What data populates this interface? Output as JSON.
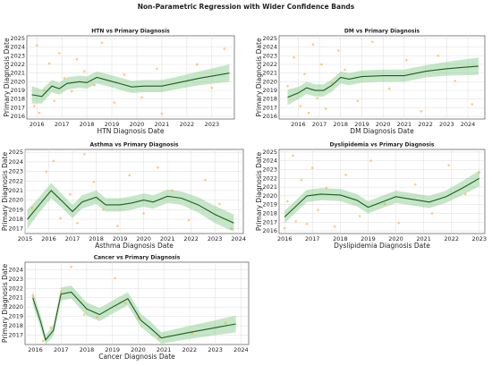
{
  "title": "Non-Parametric Regression with Wider Confidence Bands",
  "chart_data": [
    {
      "type": "scatter",
      "title": "HTN vs Primary Diagnosis",
      "xlabel": "HTN Diagnosis Date",
      "ylabel": "Primary Diagnosis Date",
      "xlim": [
        2015.6,
        2023.9
      ],
      "ylim": [
        2015.7,
        2025.3
      ],
      "xticks": [
        2016,
        2017,
        2018,
        2019,
        2020,
        2021,
        2022,
        2023
      ],
      "yticks": [
        2016,
        2017,
        2018,
        2019,
        2020,
        2021,
        2022,
        2023,
        2024,
        2025
      ],
      "grid": true,
      "points": {
        "color": "#ffa726",
        "x": [
          2015.9,
          2016.0,
          2016.1,
          2016.3,
          2016.5,
          2016.7,
          2016.9,
          2017.1,
          2017.4,
          2017.6,
          2017.9,
          2018.3,
          2018.6,
          2019.1,
          2019.5,
          2020.2,
          2020.8,
          2021.0,
          2022.4,
          2023.0,
          2023.5
        ],
        "y": [
          2017.2,
          2024.2,
          2016.4,
          2019.0,
          2022.1,
          2017.8,
          2023.3,
          2020.4,
          2018.9,
          2022.6,
          2021.2,
          2019.6,
          2024.5,
          2017.6,
          2020.8,
          2018.2,
          2021.5,
          2016.3,
          2022.0,
          2019.3,
          2023.8
        ]
      },
      "fit": {
        "color": "#1b5e20",
        "band_color": "#81c784",
        "x": [
          2015.8,
          2016.2,
          2016.6,
          2016.9,
          2017.2,
          2017.7,
          2018.0,
          2018.4,
          2018.8,
          2019.3,
          2019.8,
          2020.3,
          2021.0,
          2021.5,
          2022.5,
          2023.7
        ],
        "y": [
          2018.5,
          2018.3,
          2019.5,
          2019.2,
          2019.8,
          2020.0,
          2019.9,
          2020.5,
          2020.2,
          2019.8,
          2019.4,
          2019.5,
          2019.5,
          2019.8,
          2020.4,
          2021.0
        ],
        "lower": [
          2017.5,
          2017.5,
          2018.8,
          2018.5,
          2019.1,
          2019.3,
          2019.2,
          2019.8,
          2019.5,
          2019.1,
          2018.7,
          2018.8,
          2018.8,
          2019.1,
          2019.6,
          2020.0
        ],
        "upper": [
          2019.5,
          2019.1,
          2020.2,
          2019.9,
          2020.5,
          2020.7,
          2020.6,
          2021.2,
          2020.9,
          2020.5,
          2020.1,
          2020.2,
          2020.2,
          2020.5,
          2021.2,
          2022.0
        ]
      }
    },
    {
      "type": "scatter",
      "title": "DM vs Primary Diagnosis",
      "xlabel": "DM Diagnosis Date",
      "ylabel": "Primary Diagnosis Date",
      "xlim": [
        2015.1,
        2024.8
      ],
      "ylim": [
        2015.7,
        2025.3
      ],
      "xticks": [
        2016,
        2017,
        2018,
        2019,
        2020,
        2021,
        2022,
        2023,
        2024
      ],
      "yticks": [
        2016,
        2017,
        2018,
        2019,
        2020,
        2021,
        2022,
        2023,
        2024,
        2025
      ],
      "grid": true,
      "points": {
        "color": "#ffa726",
        "x": [
          2015.5,
          2015.8,
          2016.1,
          2016.3,
          2016.5,
          2016.7,
          2016.9,
          2017.1,
          2017.3,
          2017.6,
          2017.9,
          2018.2,
          2018.8,
          2019.5,
          2020.3,
          2021.1,
          2021.8,
          2022.6,
          2023.4,
          2024.2
        ],
        "y": [
          2019.5,
          2022.8,
          2017.2,
          2020.9,
          2016.4,
          2024.3,
          2018.1,
          2022.0,
          2016.9,
          2019.8,
          2023.6,
          2021.4,
          2017.8,
          2024.6,
          2019.2,
          2022.5,
          2016.6,
          2023.0,
          2020.1,
          2017.4
        ]
      },
      "fit": {
        "color": "#1b5e20",
        "band_color": "#81c784",
        "x": [
          2015.5,
          2016.0,
          2016.4,
          2016.8,
          2017.2,
          2017.6,
          2018.0,
          2018.4,
          2019.0,
          2020.0,
          2021.0,
          2022.0,
          2023.0,
          2024.5
        ],
        "y": [
          2018.2,
          2018.7,
          2019.3,
          2019.0,
          2019.0,
          2019.6,
          2020.5,
          2020.3,
          2020.6,
          2020.7,
          2020.7,
          2021.2,
          2021.5,
          2021.8
        ],
        "lower": [
          2017.3,
          2018.0,
          2018.6,
          2018.3,
          2018.3,
          2018.9,
          2019.8,
          2019.6,
          2019.9,
          2020.0,
          2020.0,
          2020.5,
          2020.7,
          2020.8
        ],
        "upper": [
          2019.1,
          2019.4,
          2020.0,
          2019.7,
          2019.7,
          2020.3,
          2021.2,
          2021.0,
          2021.3,
          2021.4,
          2021.4,
          2021.9,
          2022.3,
          2022.8
        ]
      }
    },
    {
      "type": "scatter",
      "title": "Asthma vs Primary Diagnosis",
      "xlabel": "Asthma Diagnosis Date",
      "ylabel": "Primary Diagnosis Date",
      "xlim": [
        2015.0,
        2024.2
      ],
      "ylim": [
        2016.5,
        2025.3
      ],
      "xticks": [
        2015,
        2016,
        2017,
        2018,
        2019,
        2020,
        2021,
        2022,
        2023,
        2024
      ],
      "yticks": [
        2017,
        2018,
        2019,
        2020,
        2021,
        2022,
        2023,
        2024,
        2025
      ],
      "grid": true,
      "points": {
        "color": "#ffa726",
        "x": [
          2015.3,
          2015.9,
          2016.2,
          2016.5,
          2016.9,
          2017.2,
          2017.5,
          2017.9,
          2018.3,
          2018.9,
          2019.4,
          2020.0,
          2020.6,
          2021.2,
          2021.9,
          2022.6,
          2023.2,
          2023.7
        ],
        "y": [
          2019.2,
          2023.0,
          2024.1,
          2018.1,
          2020.6,
          2017.6,
          2024.8,
          2021.9,
          2019.0,
          2017.3,
          2022.6,
          2018.6,
          2023.4,
          2021.0,
          2017.9,
          2022.1,
          2019.6,
          2017.0
        ]
      },
      "fit": {
        "color": "#1b5e20",
        "band_color": "#81c784",
        "x": [
          2015.1,
          2015.6,
          2016.1,
          2016.6,
          2017.0,
          2017.4,
          2018.0,
          2018.4,
          2019.0,
          2019.5,
          2020.0,
          2020.4,
          2021.0,
          2021.6,
          2022.3,
          2023.0,
          2023.8
        ],
        "y": [
          2018.0,
          2019.5,
          2021.0,
          2019.8,
          2018.8,
          2019.8,
          2020.3,
          2019.5,
          2019.5,
          2019.7,
          2020.0,
          2019.8,
          2020.4,
          2020.2,
          2019.5,
          2018.5,
          2017.6
        ],
        "lower": [
          2017.0,
          2018.7,
          2020.2,
          2019.1,
          2018.1,
          2019.1,
          2019.6,
          2018.8,
          2018.8,
          2019.0,
          2019.3,
          2019.1,
          2019.7,
          2019.5,
          2018.7,
          2017.6,
          2016.7
        ],
        "upper": [
          2019.0,
          2020.3,
          2021.8,
          2020.5,
          2019.5,
          2020.5,
          2021.0,
          2020.2,
          2020.2,
          2020.4,
          2020.7,
          2020.5,
          2021.1,
          2020.9,
          2020.3,
          2019.4,
          2018.5
        ]
      }
    },
    {
      "type": "scatter",
      "title": "Dyslipidemia vs Primary Diagnosis",
      "xlabel": "Dyslipidemia Diagnosis Date",
      "ylabel": "Primary Diagnosis Date",
      "xlim": [
        2015.8,
        2023.2
      ],
      "ylim": [
        2015.7,
        2025.3
      ],
      "xticks": [
        2016,
        2017,
        2018,
        2019,
        2020,
        2021,
        2022,
        2023
      ],
      "yticks": [
        2016,
        2017,
        2018,
        2019,
        2020,
        2021,
        2022,
        2023,
        2024,
        2025
      ],
      "grid": true,
      "points": {
        "color": "#ffa726",
        "x": [
          2016.0,
          2016.1,
          2016.3,
          2016.4,
          2016.6,
          2016.8,
          2017.0,
          2017.2,
          2017.5,
          2017.8,
          2018.2,
          2018.7,
          2019.1,
          2019.6,
          2020.1,
          2020.7,
          2021.3,
          2021.9,
          2022.5,
          2023.0
        ],
        "y": [
          2016.3,
          2019.4,
          2024.6,
          2017.1,
          2021.8,
          2016.8,
          2023.2,
          2018.4,
          2020.9,
          2016.5,
          2022.4,
          2017.7,
          2024.0,
          2019.1,
          2016.9,
          2021.3,
          2018.0,
          2023.5,
          2020.2,
          2022.7
        ]
      },
      "fit": {
        "color": "#1b5e20",
        "band_color": "#81c784",
        "x": [
          2016.0,
          2016.4,
          2016.8,
          2017.3,
          2018.0,
          2018.6,
          2019.0,
          2019.5,
          2020.0,
          2020.6,
          2021.2,
          2021.8,
          2022.4,
          2023.0
        ],
        "y": [
          2017.6,
          2018.8,
          2020.0,
          2020.2,
          2020.1,
          2019.5,
          2018.7,
          2019.3,
          2019.9,
          2019.6,
          2019.3,
          2019.9,
          2020.9,
          2022.0
        ],
        "lower": [
          2016.9,
          2018.1,
          2019.3,
          2019.5,
          2019.4,
          2018.8,
          2018.0,
          2018.6,
          2019.2,
          2018.9,
          2018.6,
          2019.2,
          2020.1,
          2021.1
        ],
        "upper": [
          2018.3,
          2019.5,
          2020.7,
          2020.9,
          2020.8,
          2020.2,
          2019.4,
          2020.0,
          2020.6,
          2020.3,
          2020.0,
          2020.6,
          2021.7,
          2022.9
        ]
      }
    },
    {
      "type": "scatter",
      "title": "Cancer vs Primary Diagnosis",
      "xlabel": "Cancer Diagnosis Date",
      "ylabel": "Primary Diagnosis Date",
      "xlim": [
        2015.6,
        2024.3
      ],
      "ylim": [
        2016.0,
        2024.8
      ],
      "xticks": [
        2016,
        2017,
        2018,
        2019,
        2020,
        2021,
        2022,
        2023,
        2024
      ],
      "yticks": [
        2017,
        2018,
        2019,
        2020,
        2021,
        2022,
        2023,
        2024
      ],
      "grid": true,
      "points": {
        "color": "#ffa726",
        "x": [
          2015.9,
          2016.3,
          2016.6,
          2017.0,
          2017.4,
          2017.9,
          2018.4,
          2019.1,
          2019.5,
          2020.0,
          2020.8,
          2022.1,
          2023.4
        ],
        "y": [
          2021.2,
          2016.4,
          2017.8,
          2021.6,
          2024.3,
          2019.2,
          2018.9,
          2023.1,
          2020.4,
          2018.8,
          2016.7,
          2017.2,
          2018.3
        ]
      },
      "fit": {
        "color": "#1b5e20",
        "band_color": "#81c784",
        "x": [
          2015.9,
          2016.2,
          2016.4,
          2016.7,
          2017.0,
          2017.4,
          2018.0,
          2018.5,
          2019.0,
          2019.6,
          2020.1,
          2020.5,
          2020.9,
          2022.0,
          2023.0,
          2023.8
        ],
        "y": [
          2021.0,
          2018.5,
          2016.5,
          2017.5,
          2021.4,
          2021.6,
          2019.8,
          2019.2,
          2020.0,
          2020.9,
          2018.6,
          2017.7,
          2016.7,
          2017.3,
          2017.8,
          2018.2
        ],
        "lower": [
          2020.3,
          2017.8,
          2016.0,
          2016.9,
          2020.7,
          2020.9,
          2019.1,
          2018.5,
          2019.3,
          2020.2,
          2017.9,
          2017.0,
          2016.1,
          2016.6,
          2017.0,
          2017.3
        ],
        "upper": [
          2021.7,
          2019.2,
          2017.0,
          2018.1,
          2022.1,
          2022.3,
          2020.5,
          2019.9,
          2020.7,
          2021.6,
          2019.3,
          2018.4,
          2017.3,
          2018.0,
          2018.6,
          2019.1
        ]
      }
    }
  ]
}
